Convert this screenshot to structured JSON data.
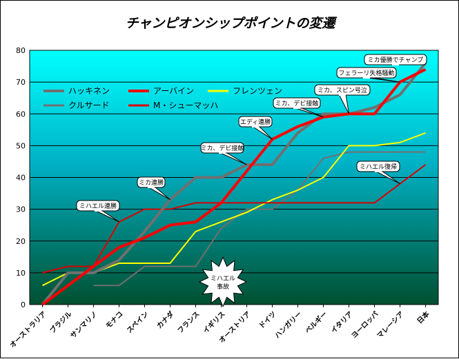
{
  "chart_data": {
    "type": "line",
    "title": "チャンピオンシップポイントの変遷",
    "xlabel": "",
    "ylabel": "",
    "ylim": [
      0,
      80
    ],
    "yticks": [
      0,
      10,
      20,
      30,
      40,
      50,
      60,
      70,
      80
    ],
    "grid": true,
    "legend_position": "top-left",
    "categories": [
      "オーストラリア",
      "ブラジル",
      "サンマリノ",
      "モナコ",
      "スペイン",
      "カナダ",
      "フランス",
      "イギリス",
      "オーストリア",
      "ドイツ",
      "ハンガリー",
      "ベルギー",
      "イタリア",
      "ヨーロッパ",
      "マレーシア",
      "日本"
    ],
    "series": [
      {
        "name": "ハッキネン",
        "color": "#707070",
        "width": 4,
        "values": [
          0,
          10,
          10,
          14,
          23,
          33,
          40,
          40,
          44,
          44,
          54,
          60,
          60,
          62,
          66,
          76
        ]
      },
      {
        "name": "アーバイン",
        "color": "#ff0000",
        "width": 4,
        "values": [
          0,
          6,
          12,
          18,
          21,
          25,
          26,
          32,
          42,
          52,
          56,
          59,
          60,
          60,
          70,
          74
        ]
      },
      {
        "name": "フレンツェン",
        "color": "#ffff00",
        "width": 2,
        "values": [
          6,
          10,
          10,
          13,
          13,
          13,
          23,
          26,
          29,
          33,
          36,
          40,
          50,
          50,
          51,
          54
        ]
      },
      {
        "name": "クルサード",
        "color": "#707070",
        "width": 2,
        "values": [
          null,
          null,
          6,
          6,
          12,
          12,
          12,
          24,
          30,
          30,
          36,
          46,
          48,
          48,
          48,
          48
        ]
      },
      {
        "name": "M・シューマッハ",
        "color": "#dd0000",
        "width": 2,
        "values": [
          10,
          12,
          12,
          26,
          30,
          30,
          32,
          32,
          32,
          32,
          32,
          32,
          32,
          32,
          38,
          44
        ]
      }
    ],
    "annotations": [
      {
        "text": "ミハエル連勝"
      },
      {
        "text": "ミカ連勝"
      },
      {
        "text": "ミカ、デビ接触"
      },
      {
        "text": "エディ連勝"
      },
      {
        "text": "ミカ、デビ接触"
      },
      {
        "text": "ミカ、スピン号泣"
      },
      {
        "text": "フェラーリ失格騒動"
      },
      {
        "text": "ミカ優勝でチャンプ"
      },
      {
        "text": "ミハエル復帰"
      },
      {
        "text": "ミハエル事故"
      }
    ]
  }
}
